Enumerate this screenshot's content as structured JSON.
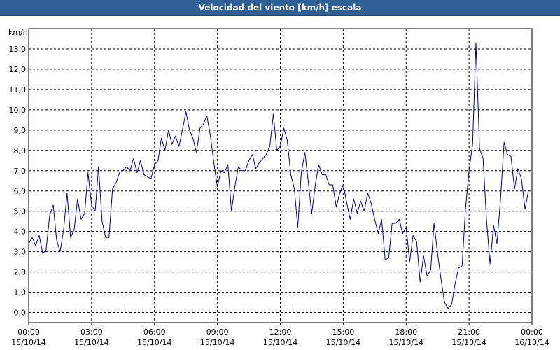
{
  "title": "Velocidad del viento [km/h] escala",
  "chart_data": {
    "type": "line",
    "title": "Velocidad del viento [km/h] escala",
    "ylabel": "km/h",
    "xlabel": "",
    "ylim": [
      -0.5,
      14.0
    ],
    "xlim_hours": [
      0,
      24
    ],
    "y_ticks": [
      "0,0",
      "1,0",
      "2,0",
      "3,0",
      "4,0",
      "5,0",
      "6,0",
      "7,0",
      "8,0",
      "9,0",
      "10,0",
      "11,0",
      "12,0",
      "13,0"
    ],
    "x_ticks": [
      {
        "time": "00:00",
        "date": "15/10/14"
      },
      {
        "time": "03:00",
        "date": "15/10/14"
      },
      {
        "time": "06:00",
        "date": "15/10/14"
      },
      {
        "time": "09:00",
        "date": "15/10/14"
      },
      {
        "time": "12:00",
        "date": "15/10/14"
      },
      {
        "time": "15:00",
        "date": "15/10/14"
      },
      {
        "time": "18:00",
        "date": "15/10/14"
      },
      {
        "time": "21:00",
        "date": "15/10/14"
      },
      {
        "time": "00:00",
        "date": "16/10/14"
      }
    ],
    "grid": true,
    "line_color": "#00008b",
    "series": [
      {
        "x_hours": [
          0.0,
          0.17,
          0.33,
          0.5,
          0.67,
          0.83,
          1.0,
          1.17,
          1.33,
          1.5,
          1.67,
          1.83,
          2.0,
          2.17,
          2.33,
          2.5,
          2.67,
          2.83,
          3.0,
          3.17,
          3.33,
          3.5,
          3.67,
          3.83,
          4.0,
          4.17,
          4.33,
          4.5,
          4.67,
          4.83,
          5.0,
          5.17,
          5.33,
          5.5,
          5.67,
          5.83,
          6.0,
          6.17,
          6.33,
          6.5,
          6.67,
          6.83,
          7.0,
          7.17,
          7.33,
          7.5,
          7.67,
          7.83,
          8.0,
          8.17,
          8.33,
          8.5,
          8.67,
          8.83,
          9.0,
          9.17,
          9.33,
          9.5,
          9.67,
          9.83,
          10.0,
          10.17,
          10.33,
          10.5,
          10.67,
          10.83,
          11.0,
          11.17,
          11.33,
          11.5,
          11.67,
          11.83,
          12.0,
          12.17,
          12.33,
          12.5,
          12.67,
          12.83,
          13.0,
          13.17,
          13.33,
          13.5,
          13.67,
          13.83,
          14.0,
          14.17,
          14.33,
          14.5,
          14.67,
          14.83,
          15.0,
          15.17,
          15.33,
          15.5,
          15.67,
          15.83,
          16.0,
          16.17,
          16.33,
          16.5,
          16.67,
          16.83,
          17.0,
          17.17,
          17.33,
          17.5,
          17.67,
          17.83,
          18.0,
          18.17,
          18.33,
          18.5,
          18.67,
          18.83,
          19.0,
          19.17,
          19.33,
          19.5,
          19.67,
          19.83,
          20.0,
          20.17,
          20.33,
          20.5,
          20.67,
          20.83,
          21.0,
          21.17,
          21.33,
          21.5,
          21.67,
          21.83,
          22.0,
          22.17,
          22.33,
          22.5,
          22.67,
          22.83,
          23.0,
          23.17,
          23.33,
          23.5,
          23.67,
          23.83
        ],
        "values": [
          3.4,
          3.7,
          3.3,
          3.8,
          2.9,
          3.1,
          4.8,
          5.3,
          3.6,
          3.0,
          4.1,
          5.9,
          3.7,
          4.1,
          5.6,
          4.6,
          4.9,
          6.9,
          5.3,
          5.0,
          7.2,
          4.5,
          3.7,
          3.7,
          6.1,
          6.4,
          6.9,
          7.0,
          7.2,
          7.0,
          7.6,
          6.9,
          7.5,
          6.8,
          6.7,
          6.6,
          7.3,
          7.5,
          8.6,
          8.0,
          9.0,
          8.3,
          8.7,
          8.2,
          9.0,
          9.9,
          9.0,
          8.6,
          7.9,
          9.1,
          9.3,
          9.7,
          8.7,
          7.4,
          6.2,
          7.0,
          6.9,
          7.3,
          5.0,
          6.2,
          7.2,
          7.0,
          7.0,
          7.5,
          7.8,
          7.1,
          7.4,
          7.6,
          7.8,
          8.2,
          9.8,
          8.0,
          8.2,
          9.1,
          8.5,
          6.8,
          6.1,
          4.2,
          6.9,
          7.9,
          6.5,
          4.9,
          6.3,
          7.3,
          6.8,
          6.8,
          6.3,
          6.3,
          5.2,
          5.9,
          6.3,
          5.4,
          4.6,
          5.6,
          4.9,
          5.5,
          5.0,
          5.9,
          5.4,
          4.6,
          3.9,
          4.6,
          2.6,
          2.7,
          4.4,
          4.4,
          4.6,
          3.9,
          4.2,
          2.5,
          3.8,
          3.5,
          1.5,
          2.8,
          1.8,
          2.1,
          4.4,
          2.9,
          1.6,
          0.5,
          0.2,
          0.4,
          1.4,
          2.2,
          2.3,
          5.1,
          7.0,
          8.3,
          13.3,
          8.1,
          7.6,
          4.6,
          2.4,
          4.3,
          3.4,
          5.6,
          8.4,
          7.8,
          7.7,
          6.1,
          7.1,
          6.6,
          5.1,
          6.0
        ]
      }
    ]
  }
}
